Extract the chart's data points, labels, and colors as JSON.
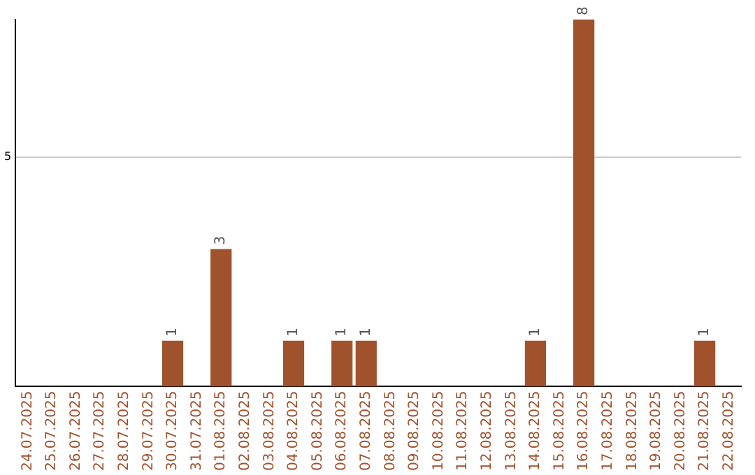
{
  "chart_data": {
    "type": "bar",
    "categories": [
      "24.07.2025",
      "25.07.2025",
      "26.07.2025",
      "27.07.2025",
      "28.07.2025",
      "29.07.2025",
      "30.07.2025",
      "31.07.2025",
      "01.08.2025",
      "02.08.2025",
      "03.08.2025",
      "04.08.2025",
      "05.08.2025",
      "06.08.2025",
      "07.08.2025",
      "08.08.2025",
      "09.08.2025",
      "10.08.2025",
      "11.08.2025",
      "12.08.2025",
      "13.08.2025",
      "14.08.2025",
      "15.08.2025",
      "16.08.2025",
      "17.08.2025",
      "18.08.2025",
      "19.08.2025",
      "20.08.2025",
      "21.08.2025",
      "22.08.2025"
    ],
    "values": [
      0,
      0,
      0,
      0,
      0,
      0,
      1,
      0,
      3,
      0,
      0,
      1,
      0,
      1,
      1,
      0,
      0,
      0,
      0,
      0,
      0,
      1,
      0,
      8,
      0,
      0,
      0,
      0,
      1,
      0
    ],
    "value_labels": [
      null,
      null,
      null,
      null,
      null,
      null,
      "1",
      null,
      "3",
      null,
      null,
      "1",
      null,
      "1",
      "1",
      null,
      null,
      null,
      null,
      null,
      null,
      "1",
      null,
      "8",
      null,
      null,
      null,
      null,
      "1",
      null
    ],
    "color": "#a0522d",
    "ylim": [
      0,
      8
    ],
    "yticks": [
      5
    ],
    "grid": "y",
    "legend": false
  }
}
